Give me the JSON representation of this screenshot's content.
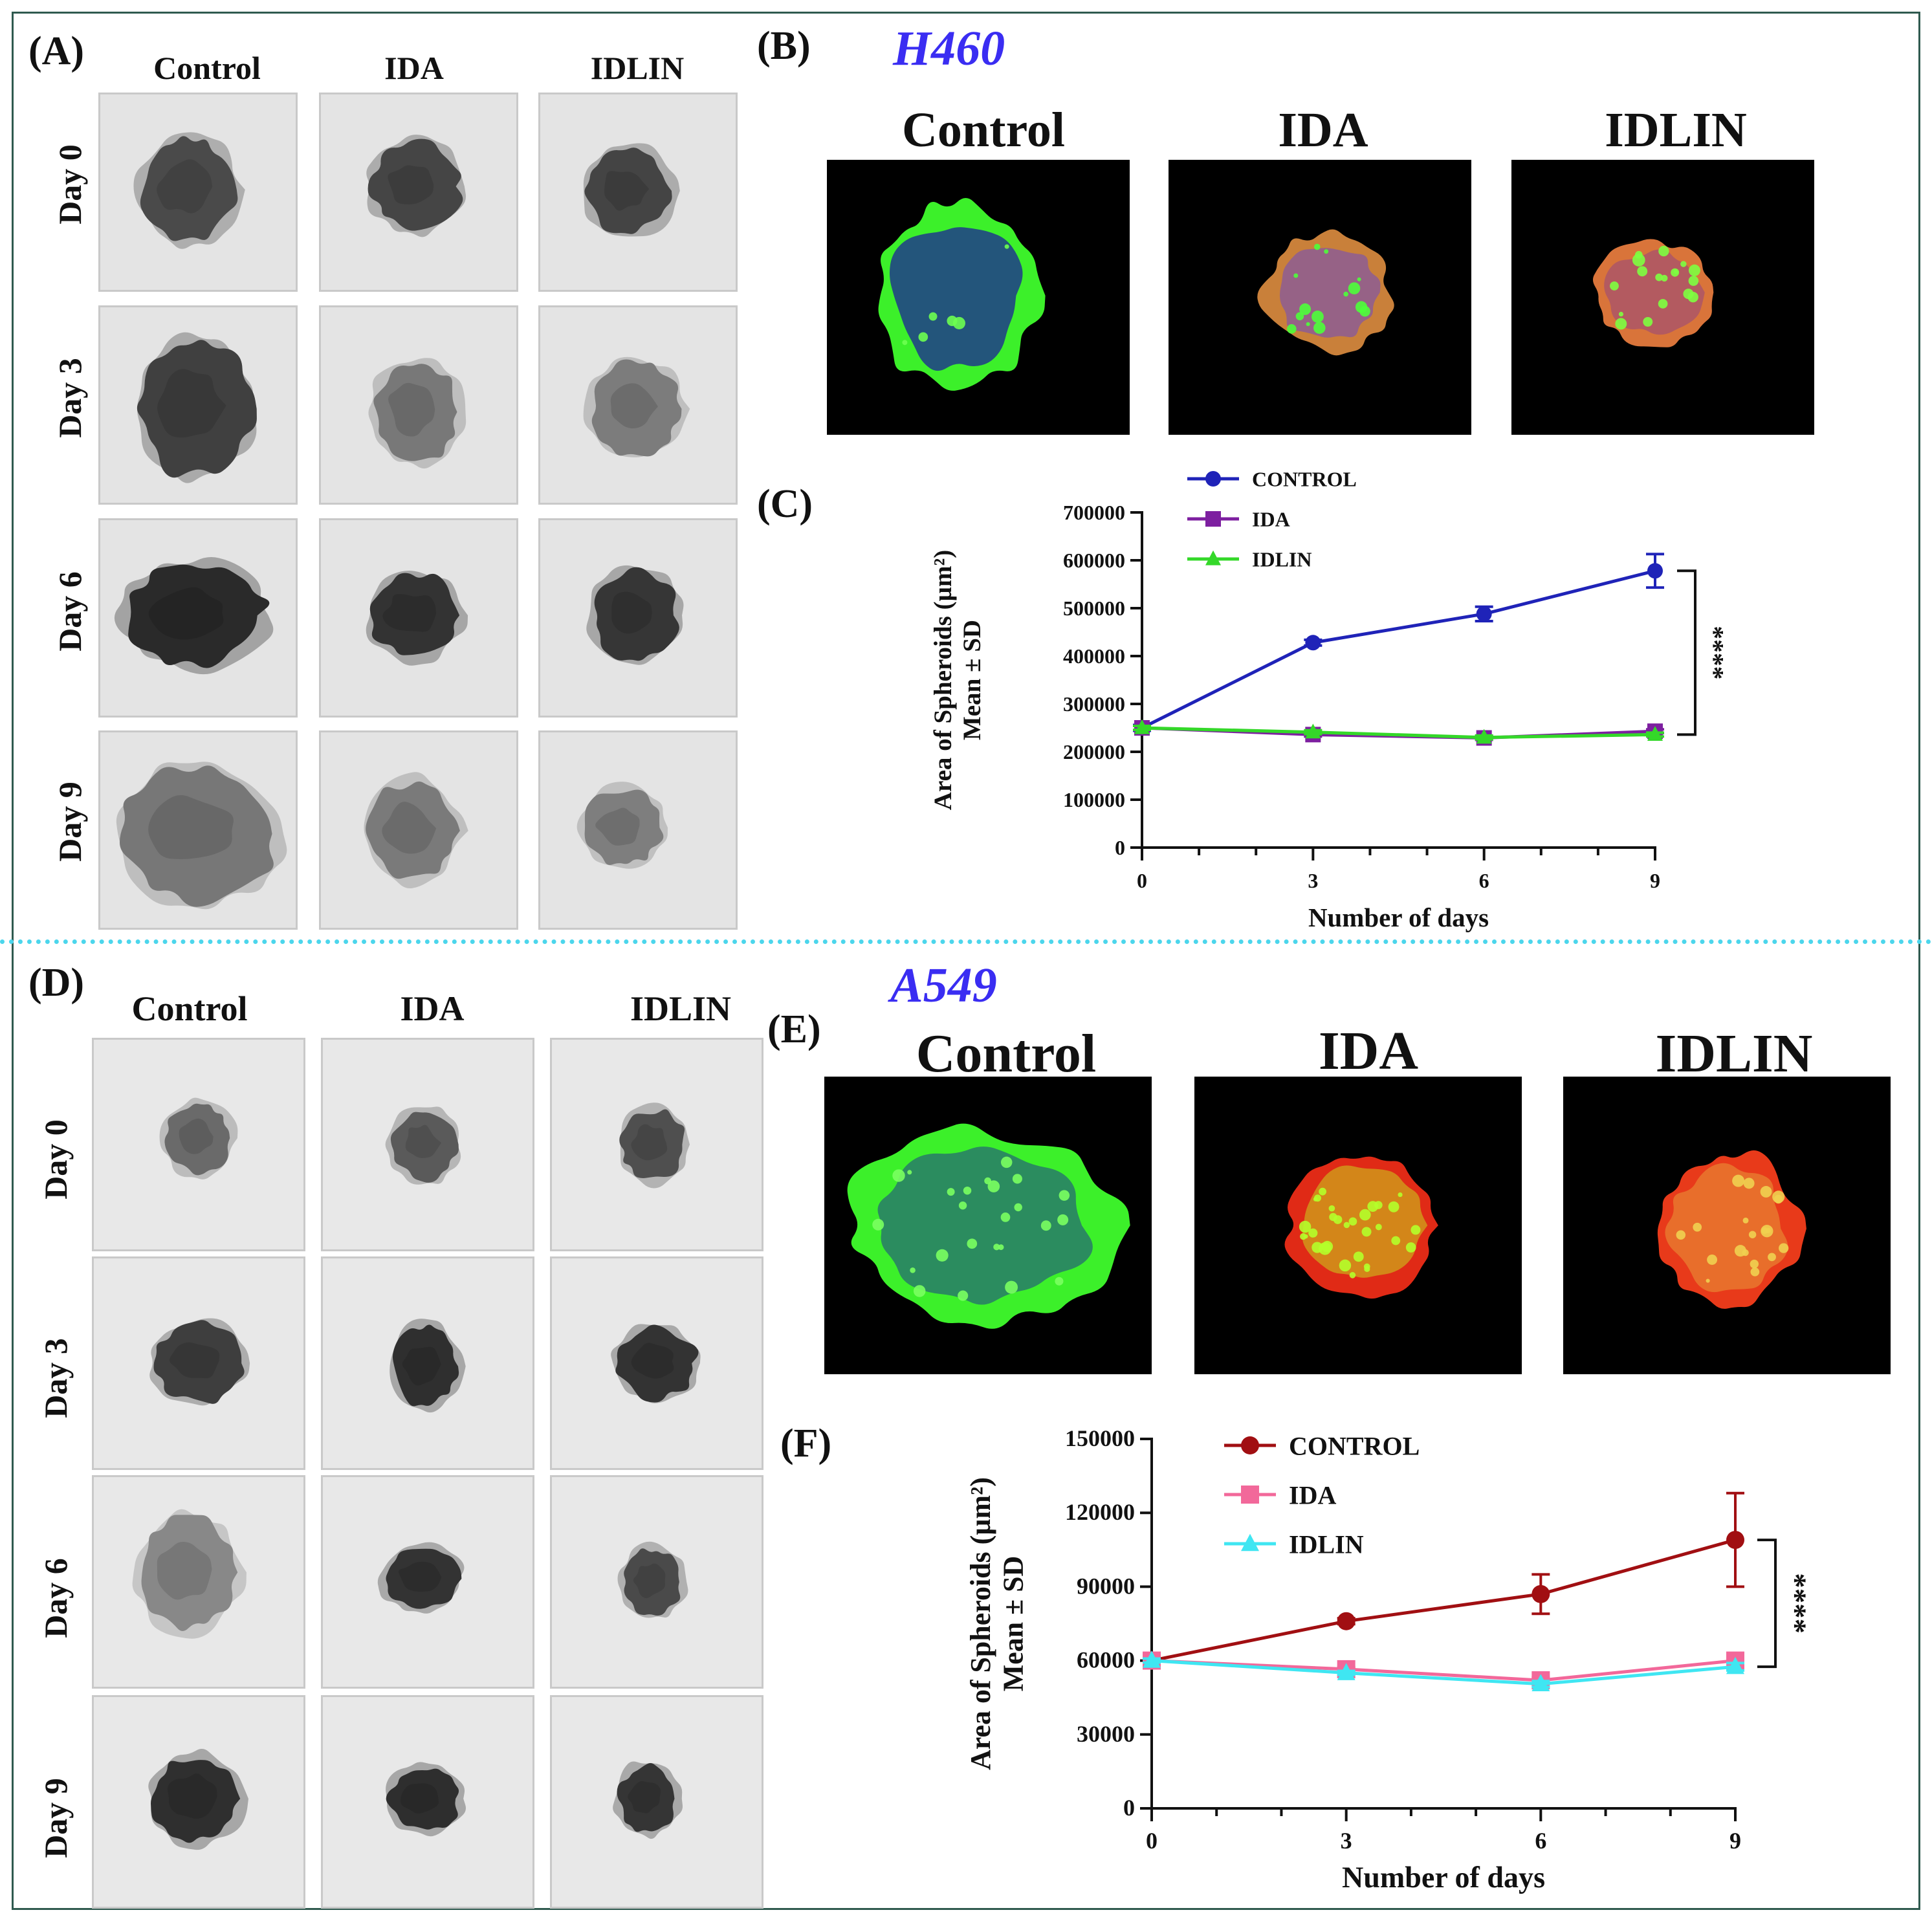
{
  "panels": {
    "A": "(A)",
    "B": "(B)",
    "C": "(C)",
    "D": "(D)",
    "E": "(E)",
    "F": "(F)"
  },
  "cell_lines": {
    "top": "H460",
    "bottom": "A549"
  },
  "treatments": [
    "Control",
    "IDA",
    "IDLIN"
  ],
  "days": [
    "Day 0",
    "Day 3",
    "Day 6",
    "Day 9"
  ],
  "colors": {
    "frame": "#2f5a4f",
    "divider": "#4cd6ec",
    "cell_line_text": "#3a2df2",
    "fluorescence_green": "#3cf02a",
    "fluorescence_red": "#e83a1a"
  },
  "chart_data": [
    {
      "type": "line",
      "panel": "(C)",
      "title": "",
      "xlabel": "Number of days",
      "ylabel": "Area of Spheroids (µm²)",
      "ylabel2": "Mean ± SD",
      "x": [
        0,
        3,
        6,
        9
      ],
      "xticks": [
        "0",
        "3",
        "6",
        "9"
      ],
      "ylim": [
        0,
        700000
      ],
      "yticks": [
        "0",
        "100000",
        "200000",
        "300000",
        "400000",
        "500000",
        "600000",
        "700000"
      ],
      "legend_position": "top-left",
      "grid": false,
      "significance": "****",
      "series": [
        {
          "name": "CONTROL",
          "values": [
            250000,
            428000,
            488000,
            578000
          ],
          "errors": [
            6000,
            6000,
            15000,
            35000
          ],
          "color": "#1f23b8",
          "marker": "circle"
        },
        {
          "name": "IDA",
          "values": [
            250000,
            236000,
            229000,
            243000
          ],
          "errors": [
            4000,
            4000,
            4000,
            4000
          ],
          "color": "#7d1fa0",
          "marker": "square"
        },
        {
          "name": "IDLIN",
          "values": [
            250000,
            241000,
            230000,
            236000
          ],
          "errors": [
            4000,
            4000,
            4000,
            4000
          ],
          "color": "#34d829",
          "marker": "triangle"
        }
      ]
    },
    {
      "type": "line",
      "panel": "(F)",
      "title": "",
      "xlabel": "Number of days",
      "ylabel": "Area of Spheroids (µm²)",
      "ylabel2": "Mean ± SD",
      "x": [
        0,
        3,
        6,
        9
      ],
      "xticks": [
        "0",
        "3",
        "6",
        "9"
      ],
      "ylim": [
        0,
        150000
      ],
      "yticks": [
        "0",
        "30000",
        "60000",
        "90000",
        "120000",
        "150000"
      ],
      "legend_position": "top-left",
      "grid": false,
      "significance": "****",
      "series": [
        {
          "name": "CONTROL",
          "values": [
            60000,
            76000,
            87000,
            109000
          ],
          "errors": [
            1000,
            1200,
            8000,
            19000
          ],
          "color": "#a10f12",
          "marker": "circle"
        },
        {
          "name": "IDA",
          "values": [
            60000,
            56500,
            52000,
            60000
          ],
          "errors": [
            800,
            800,
            1200,
            1500
          ],
          "color": "#f2689a",
          "marker": "square"
        },
        {
          "name": "IDLIN",
          "values": [
            60000,
            55000,
            50500,
            57500
          ],
          "errors": [
            800,
            800,
            1200,
            1500
          ],
          "color": "#3fe6f2",
          "marker": "triangle"
        }
      ]
    }
  ]
}
